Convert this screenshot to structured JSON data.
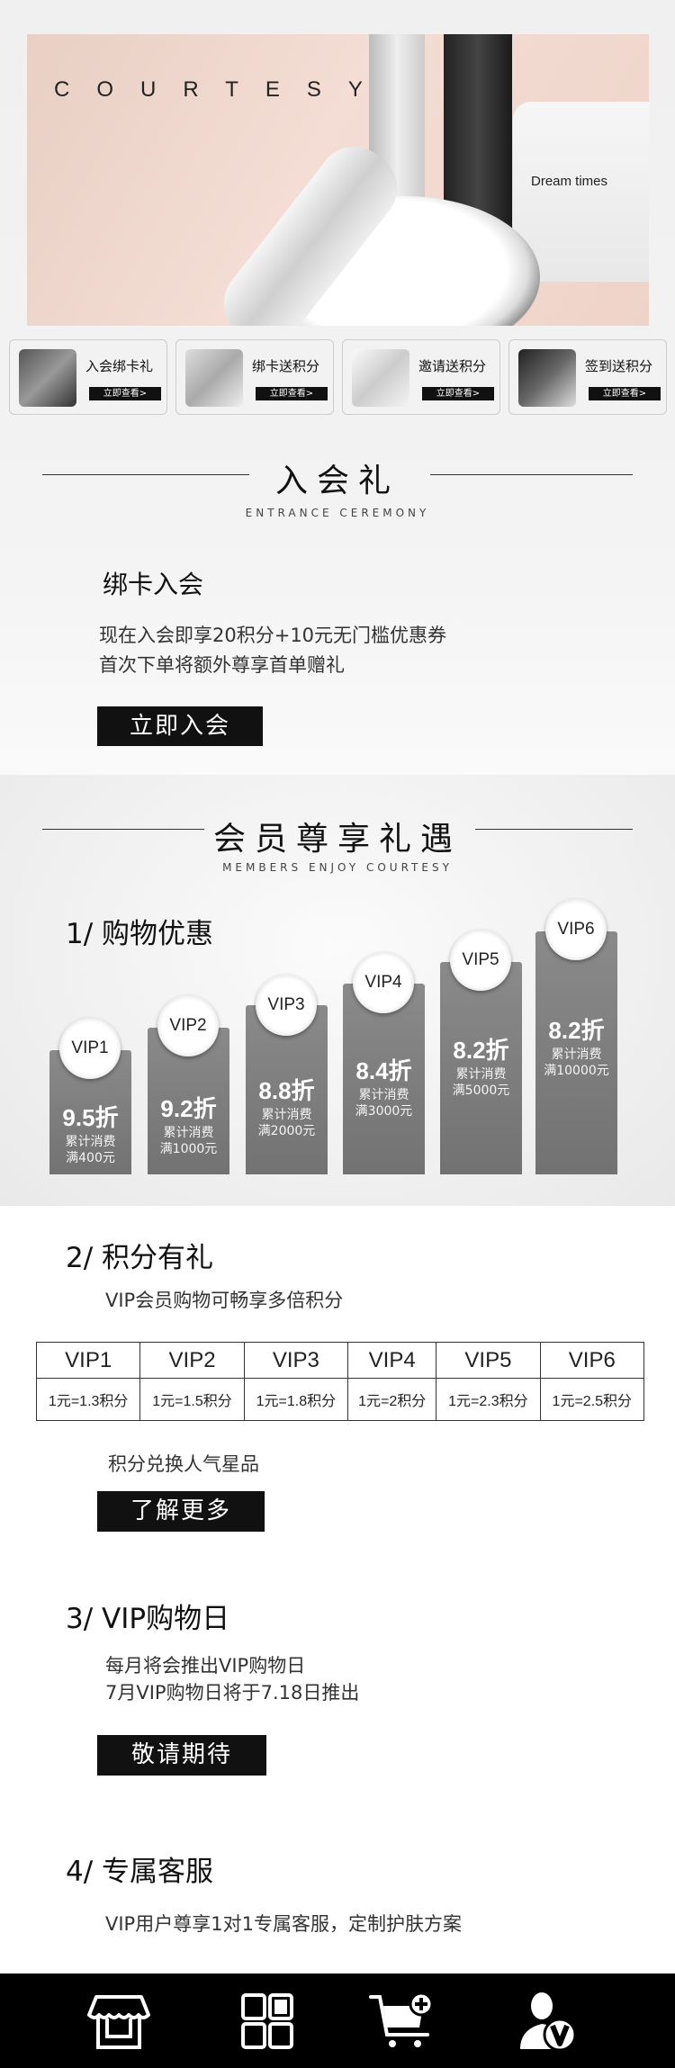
{
  "banner": {
    "headline": "COURTESY",
    "brand": "Dream times"
  },
  "cards": [
    {
      "title": "入会绑卡礼",
      "button": "立即查看>"
    },
    {
      "title": "绑卡送积分",
      "button": "立即查看>"
    },
    {
      "title": "邀请送积分",
      "button": "立即查看>"
    },
    {
      "title": "签到送积分",
      "button": "立即查看>"
    }
  ],
  "entrance": {
    "title": "入会礼",
    "subtitle": "ENTRANCE CEREMONY",
    "heading": "绑卡入会",
    "line1": "现在入会即享20积分+10元无门槛优惠券",
    "line2": "首次下单将额外尊享首单赠礼",
    "button": "立即入会"
  },
  "members": {
    "title": "会员尊享礼遇",
    "subtitle": "MEMBERS ENJOY COURTESY"
  },
  "shopping": {
    "heading": "1/ 购物优惠",
    "tiers": [
      {
        "level": "VIP1",
        "discount": "9.5折",
        "cond1": "累计消费",
        "cond2": "满400元"
      },
      {
        "level": "VIP2",
        "discount": "9.2折",
        "cond1": "累计消费",
        "cond2": "满1000元"
      },
      {
        "level": "VIP3",
        "discount": "8.8折",
        "cond1": "累计消费",
        "cond2": "满2000元"
      },
      {
        "level": "VIP4",
        "discount": "8.4折",
        "cond1": "累计消费",
        "cond2": "满3000元"
      },
      {
        "level": "VIP5",
        "discount": "8.2折",
        "cond1": "累计消费",
        "cond2": "满5000元"
      },
      {
        "level": "VIP6",
        "discount": "8.2折",
        "cond1": "累计消费",
        "cond2": "满10000元"
      }
    ]
  },
  "points": {
    "heading": "2/ 积分有礼",
    "desc": "VIP会员购物可畅享多倍积分",
    "headers": [
      "VIP1",
      "VIP2",
      "VIP3",
      "VIP4",
      "VIP5",
      "VIP6"
    ],
    "rates": [
      "1元=1.3积分",
      "1元=1.5积分",
      "1元=1.8积分",
      "1元=2积分",
      "1元=2.3积分",
      "1元=2.5积分"
    ],
    "redeem": "积分兑换人气星品",
    "button": "了解更多"
  },
  "vipday": {
    "heading": "3/ VIP购物日",
    "line1": "每月将会推出VIP购物日",
    "line2": "7月VIP购物日将于7.18日推出",
    "button": "敬请期待"
  },
  "service": {
    "heading": "4/ 专属客服",
    "desc": "VIP用户尊享1对1专属客服，定制护肤方案"
  },
  "nav": [
    "store-icon",
    "category-grid-icon",
    "cart-add-icon",
    "vip-user-icon"
  ]
}
